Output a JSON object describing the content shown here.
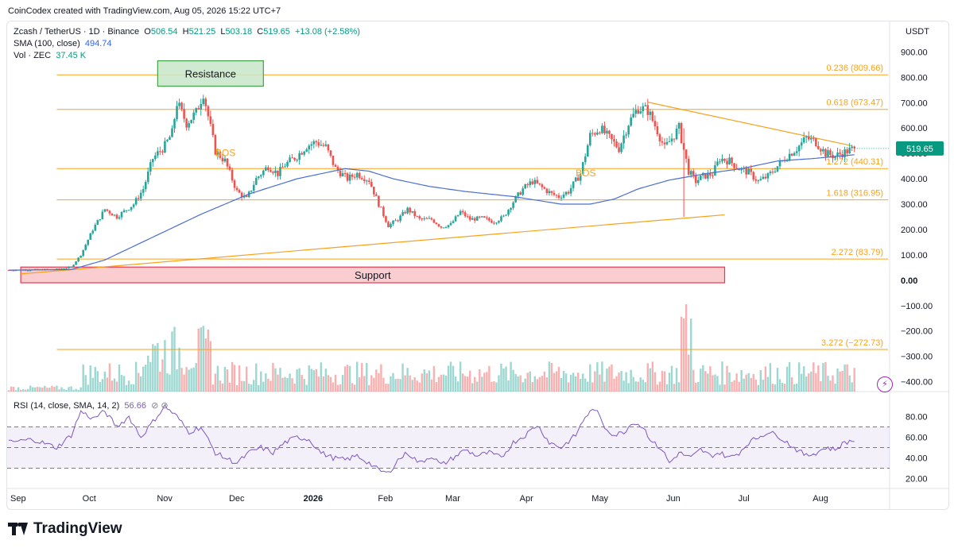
{
  "header": {
    "credit": "CoinCodex created with TradingView.com, Aug 05, 2026 15:22 UTC+7"
  },
  "legend": {
    "symbol": "Zcash / TetherUS · 1D · Binance",
    "open_label": "O",
    "open": "506.54",
    "high_label": "H",
    "high": "521.25",
    "low_label": "L",
    "low": "503.18",
    "close_label": "C",
    "close": "519.65",
    "change": "+13.08 (+2.58%)",
    "sma_label": "SMA (100, close)",
    "sma_value": "494.74",
    "vol_label": "Vol · ZEC",
    "vol_value": "37.45 K"
  },
  "rsi_legend": {
    "label": "RSI (14, close, SMA, 14, 2)",
    "value": "56.66",
    "icons": "⊘ ⊘"
  },
  "brand": {
    "name": "TradingView"
  },
  "colors": {
    "up": "#26a69a",
    "down": "#ef5350",
    "sma": "#4a6fd1",
    "fib": "#f7a21c",
    "rsi": "#7e57c2",
    "resistance_fill": "#c8e6c9",
    "resistance_stroke": "#43a047",
    "support_fill": "#f9c4c8",
    "support_stroke": "#e53950"
  },
  "chart_data": {
    "type": "candlestick",
    "currency": "USDT",
    "last_price": "519.65",
    "ylim": [
      -420,
      920
    ],
    "y_ticks": [
      {
        "v": 900,
        "label": "900.00"
      },
      {
        "v": 800,
        "label": "800.00"
      },
      {
        "v": 700,
        "label": "700.00"
      },
      {
        "v": 600,
        "label": "600.00"
      },
      {
        "v": 500,
        "label": "500.00"
      },
      {
        "v": 400,
        "label": "400.00"
      },
      {
        "v": 300,
        "label": "300.00"
      },
      {
        "v": 200,
        "label": "200.00"
      },
      {
        "v": 100,
        "label": "100.00"
      },
      {
        "v": 0,
        "label": "0.00"
      },
      {
        "v": -100,
        "label": "−100.00"
      },
      {
        "v": -200,
        "label": "−200.00"
      },
      {
        "v": -300,
        "label": "−300.00"
      },
      {
        "v": -400,
        "label": "−400.00"
      }
    ],
    "x_ticks": [
      {
        "d": 0,
        "label": "Sep"
      },
      {
        "d": 30,
        "label": "Oct"
      },
      {
        "d": 61,
        "label": "Nov"
      },
      {
        "d": 91,
        "label": "Dec"
      },
      {
        "d": 122,
        "label": "2026"
      },
      {
        "d": 153,
        "label": "Feb"
      },
      {
        "d": 181,
        "label": "Mar"
      },
      {
        "d": 212,
        "label": "Apr"
      },
      {
        "d": 242,
        "label": "May"
      },
      {
        "d": 273,
        "label": "Jun"
      },
      {
        "d": 303,
        "label": "Jul"
      },
      {
        "d": 334,
        "label": "Aug"
      }
    ],
    "fib_levels": [
      {
        "label": "0.236 (809.66)",
        "value": 809.66
      },
      {
        "label": "0.618 (673.47)",
        "value": 673.47
      },
      {
        "label": "1.272 (440.31)",
        "value": 440.31
      },
      {
        "label": "1.618 (316.95)",
        "value": 316.95
      },
      {
        "label": "2.272 (83.79)",
        "value": 83.79
      },
      {
        "label": "3.272 (−272.73)",
        "value": -272.73
      }
    ],
    "zones": [
      {
        "label": "Resistance",
        "d0": 62,
        "d1": 106,
        "y0": 765,
        "y1": 865
      },
      {
        "label": "Support",
        "d0": 5,
        "d1": 298,
        "y0": -10,
        "y1": 52
      }
    ],
    "bos_labels": [
      {
        "label": "BOS",
        "d": 236,
        "y": 410
      },
      {
        "label": "BOS",
        "d": 86,
        "y": 490
      }
    ],
    "trendlines": [
      {
        "d0": 5,
        "y0": 25,
        "d1": 298,
        "y1": 258
      },
      {
        "d0": 266,
        "y0": 702,
        "d1": 351,
        "y1": 530
      }
    ],
    "anchors": [
      [
        0,
        40
      ],
      [
        10,
        41
      ],
      [
        20,
        43
      ],
      [
        26,
        52
      ],
      [
        30,
        100
      ],
      [
        35,
        200
      ],
      [
        40,
        280
      ],
      [
        45,
        250
      ],
      [
        52,
        300
      ],
      [
        56,
        360
      ],
      [
        60,
        480
      ],
      [
        65,
        530
      ],
      [
        68,
        580
      ],
      [
        70,
        700
      ],
      [
        74,
        620
      ],
      [
        78,
        660
      ],
      [
        81,
        740
      ],
      [
        84,
        600
      ],
      [
        86,
        510
      ],
      [
        90,
        470
      ],
      [
        95,
        350
      ],
      [
        99,
        320
      ],
      [
        103,
        400
      ],
      [
        108,
        450
      ],
      [
        112,
        420
      ],
      [
        115,
        455
      ],
      [
        120,
        490
      ],
      [
        124,
        530
      ],
      [
        128,
        545
      ],
      [
        132,
        525
      ],
      [
        136,
        440
      ],
      [
        141,
        400
      ],
      [
        145,
        420
      ],
      [
        150,
        395
      ],
      [
        154,
        300
      ],
      [
        158,
        215
      ],
      [
        162,
        240
      ],
      [
        166,
        280
      ],
      [
        171,
        240
      ],
      [
        176,
        240
      ],
      [
        180,
        210
      ],
      [
        184,
        220
      ],
      [
        188,
        270
      ],
      [
        192,
        240
      ],
      [
        197,
        245
      ],
      [
        202,
        230
      ],
      [
        206,
        250
      ],
      [
        210,
        310
      ],
      [
        214,
        360
      ],
      [
        218,
        390
      ],
      [
        222,
        365
      ],
      [
        226,
        340
      ],
      [
        229,
        330
      ],
      [
        233,
        350
      ],
      [
        238,
        420
      ],
      [
        242,
        570
      ],
      [
        246,
        600
      ],
      [
        250,
        560
      ],
      [
        254,
        520
      ],
      [
        258,
        620
      ],
      [
        262,
        680
      ],
      [
        266,
        670
      ],
      [
        270,
        590
      ],
      [
        273,
        520
      ],
      [
        276,
        560
      ],
      [
        279,
        600
      ],
      [
        283,
        430
      ],
      [
        286,
        390
      ],
      [
        289,
        410
      ],
      [
        293,
        420
      ],
      [
        296,
        480
      ],
      [
        300,
        470
      ],
      [
        304,
        440
      ],
      [
        308,
        425
      ],
      [
        312,
        390
      ],
      [
        316,
        410
      ],
      [
        320,
        450
      ],
      [
        324,
        490
      ],
      [
        328,
        520
      ],
      [
        332,
        560
      ],
      [
        336,
        545
      ],
      [
        340,
        500
      ],
      [
        344,
        490
      ],
      [
        348,
        505
      ],
      [
        352,
        519.65
      ]
    ],
    "sma_anchors": [
      [
        0,
        40
      ],
      [
        26,
        42
      ],
      [
        40,
        80
      ],
      [
        60,
        170
      ],
      [
        80,
        260
      ],
      [
        100,
        340
      ],
      [
        120,
        400
      ],
      [
        140,
        440
      ],
      [
        150,
        430
      ],
      [
        160,
        400
      ],
      [
        175,
        370
      ],
      [
        190,
        350
      ],
      [
        210,
        330
      ],
      [
        230,
        300
      ],
      [
        242,
        300
      ],
      [
        252,
        320
      ],
      [
        262,
        360
      ],
      [
        275,
        395
      ],
      [
        290,
        420
      ],
      [
        305,
        440
      ],
      [
        320,
        470
      ],
      [
        335,
        480
      ],
      [
        352,
        494.74
      ]
    ],
    "rsi_ylim": [
      15,
      95
    ],
    "rsi_ticks": [
      {
        "v": 80,
        "label": "80.00"
      },
      {
        "v": 60,
        "label": "60.00"
      },
      {
        "v": 40,
        "label": "40.00"
      },
      {
        "v": 20,
        "label": "20.00"
      }
    ],
    "rsi_band": [
      30,
      70
    ],
    "rsi_anchors": [
      [
        0,
        55
      ],
      [
        10,
        58
      ],
      [
        20,
        50
      ],
      [
        26,
        62
      ],
      [
        30,
        85
      ],
      [
        35,
        78
      ],
      [
        40,
        85
      ],
      [
        45,
        70
      ],
      [
        50,
        80
      ],
      [
        55,
        60
      ],
      [
        60,
        75
      ],
      [
        65,
        90
      ],
      [
        70,
        80
      ],
      [
        75,
        65
      ],
      [
        80,
        70
      ],
      [
        86,
        45
      ],
      [
        90,
        40
      ],
      [
        95,
        35
      ],
      [
        100,
        45
      ],
      [
        105,
        50
      ],
      [
        110,
        45
      ],
      [
        115,
        55
      ],
      [
        120,
        60
      ],
      [
        125,
        58
      ],
      [
        130,
        45
      ],
      [
        135,
        40
      ],
      [
        140,
        38
      ],
      [
        145,
        42
      ],
      [
        150,
        35
      ],
      [
        154,
        28
      ],
      [
        158,
        25
      ],
      [
        162,
        38
      ],
      [
        166,
        45
      ],
      [
        171,
        35
      ],
      [
        176,
        42
      ],
      [
        180,
        33
      ],
      [
        185,
        40
      ],
      [
        190,
        48
      ],
      [
        195,
        42
      ],
      [
        200,
        45
      ],
      [
        205,
        40
      ],
      [
        210,
        55
      ],
      [
        215,
        62
      ],
      [
        220,
        72
      ],
      [
        225,
        55
      ],
      [
        230,
        50
      ],
      [
        236,
        62
      ],
      [
        240,
        80
      ],
      [
        244,
        88
      ],
      [
        248,
        70
      ],
      [
        252,
        62
      ],
      [
        256,
        65
      ],
      [
        260,
        75
      ],
      [
        264,
        70
      ],
      [
        268,
        55
      ],
      [
        272,
        48
      ],
      [
        275,
        35
      ],
      [
        279,
        45
      ],
      [
        284,
        40
      ],
      [
        288,
        48
      ],
      [
        292,
        42
      ],
      [
        296,
        45
      ],
      [
        300,
        40
      ],
      [
        304,
        45
      ],
      [
        308,
        55
      ],
      [
        312,
        60
      ],
      [
        316,
        65
      ],
      [
        320,
        62
      ],
      [
        324,
        55
      ],
      [
        328,
        48
      ],
      [
        332,
        42
      ],
      [
        336,
        45
      ],
      [
        340,
        50
      ],
      [
        344,
        48
      ],
      [
        348,
        55
      ],
      [
        352,
        57
      ]
    ]
  }
}
